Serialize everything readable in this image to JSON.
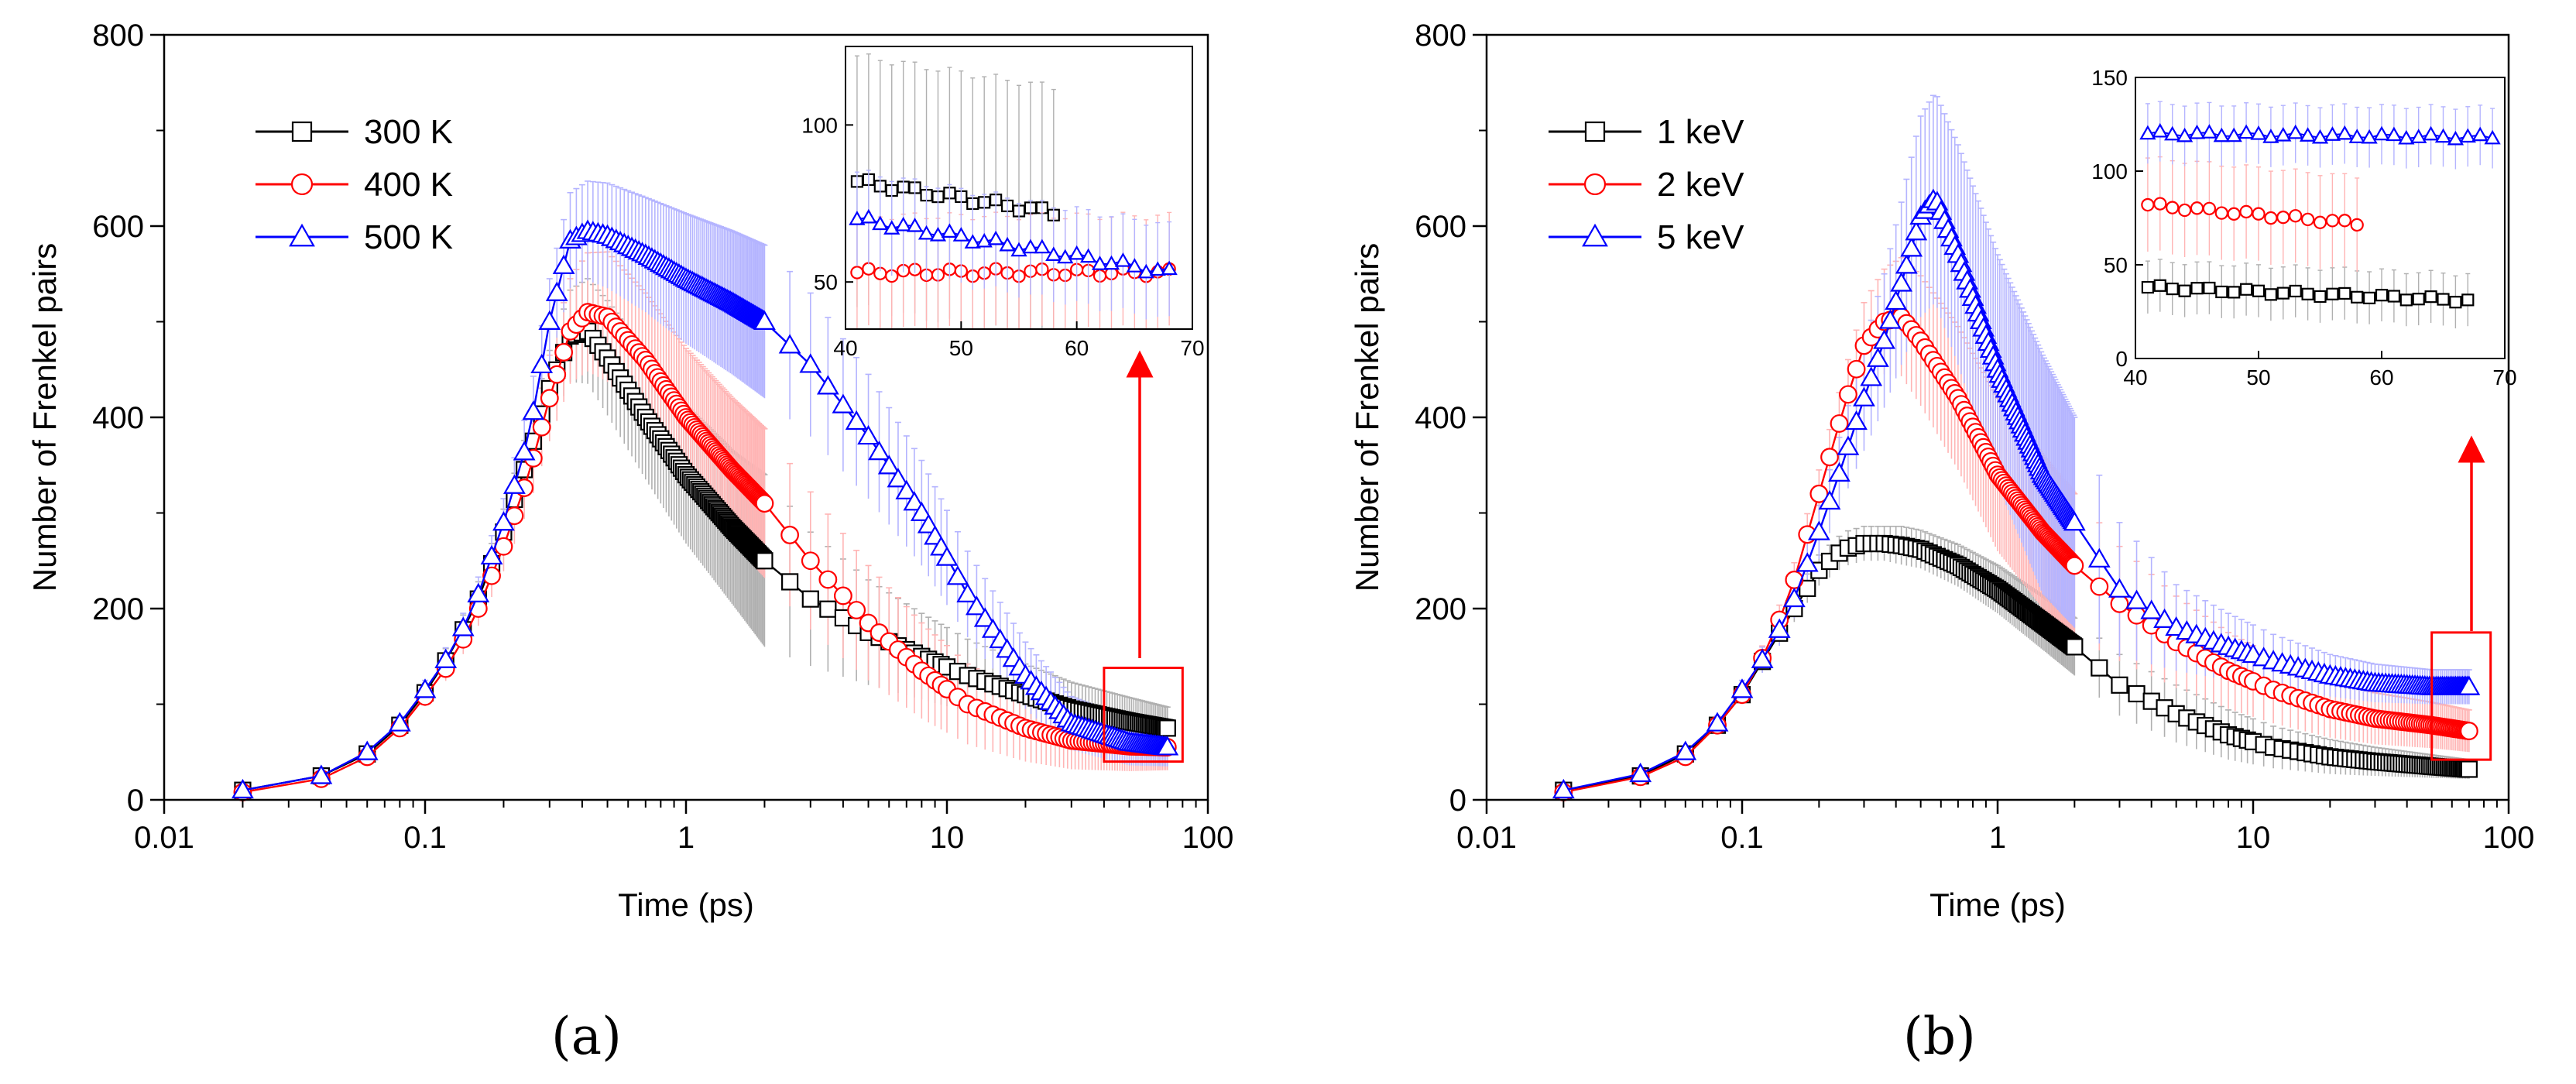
{
  "figure": {
    "panels": [
      "(a)",
      "(b)"
    ]
  },
  "chart_data": [
    {
      "type": "line",
      "id": "a",
      "title": "",
      "xlabel": "Time (ps)",
      "ylabel": "Number of Frenkel pairs",
      "xscale": "log",
      "xlim": [
        0.01,
        100
      ],
      "ylim": [
        0,
        800
      ],
      "xticks": [
        0.01,
        0.1,
        1,
        10,
        100
      ],
      "xtick_labels": [
        "0.01",
        "0.1",
        "1",
        "10",
        "100"
      ],
      "yticks": [
        0,
        200,
        400,
        600,
        800
      ],
      "ytick_labels": [
        "0",
        "200",
        "400",
        "600",
        "800"
      ],
      "legend_position": "top-left",
      "series": [
        {
          "name": "300 K",
          "color": "#000000",
          "marker": "square",
          "anchors_t": [
            0.02,
            0.04,
            0.06,
            0.08,
            0.1,
            0.13,
            0.16,
            0.2,
            0.25,
            0.3,
            0.36,
            0.42,
            0.5,
            0.7,
            1,
            1.5,
            2,
            3,
            5,
            8,
            12,
            20,
            30,
            50,
            70
          ],
          "anchors_v": [
            10,
            25,
            48,
            78,
            112,
            160,
            210,
            280,
            360,
            430,
            485,
            490,
            462,
            400,
            340,
            285,
            250,
            210,
            175,
            150,
            130,
            110,
            95,
            82,
            75
          ],
          "err": [
            2,
            4,
            6,
            8,
            10,
            14,
            18,
            24,
            32,
            40,
            48,
            55,
            60,
            65,
            72,
            80,
            90,
            70,
            55,
            45,
            38,
            32,
            28,
            25,
            22
          ]
        },
        {
          "name": "400 K",
          "color": "#ff0000",
          "marker": "circle",
          "anchors_t": [
            0.02,
            0.04,
            0.06,
            0.08,
            0.1,
            0.13,
            0.16,
            0.2,
            0.25,
            0.3,
            0.36,
            0.42,
            0.5,
            0.7,
            1,
            1.5,
            2,
            3,
            5,
            8,
            12,
            20,
            30,
            50,
            70
          ],
          "anchors_v": [
            8,
            22,
            45,
            75,
            108,
            150,
            200,
            265,
            340,
            420,
            490,
            510,
            505,
            460,
            400,
            345,
            310,
            250,
            185,
            135,
            100,
            75,
            62,
            56,
            55
          ],
          "err": [
            2,
            4,
            6,
            8,
            10,
            14,
            18,
            26,
            34,
            45,
            55,
            62,
            68,
            70,
            72,
            75,
            78,
            72,
            60,
            50,
            42,
            35,
            30,
            26,
            24
          ]
        },
        {
          "name": "500 K",
          "color": "#0000ff",
          "marker": "triangle",
          "anchors_t": [
            0.02,
            0.04,
            0.06,
            0.08,
            0.1,
            0.13,
            0.16,
            0.2,
            0.25,
            0.3,
            0.36,
            0.42,
            0.5,
            0.7,
            1,
            1.5,
            2,
            3,
            5,
            8,
            12,
            20,
            30,
            50,
            70
          ],
          "anchors_v": [
            10,
            25,
            50,
            80,
            115,
            160,
            215,
            290,
            380,
            500,
            585,
            595,
            590,
            570,
            545,
            520,
            500,
            455,
            380,
            300,
            215,
            130,
            80,
            60,
            55
          ],
          "err": [
            2,
            4,
            6,
            8,
            10,
            14,
            18,
            25,
            35,
            45,
            50,
            52,
            55,
            60,
            68,
            75,
            80,
            75,
            65,
            55,
            45,
            35,
            28,
            24,
            20
          ]
        }
      ],
      "inset": {
        "xlim": [
          40,
          70
        ],
        "ylim": [
          35,
          125
        ],
        "xticks": [
          40,
          50,
          60,
          70
        ],
        "xtick_labels": [
          "40",
          "50",
          "60",
          "70"
        ],
        "yticks": [
          50,
          100
        ],
        "ytick_labels": [
          "50",
          "100"
        ],
        "series": [
          {
            "name": "300 K",
            "color": "#000000",
            "marker": "square",
            "x_start": 41,
            "x_end": 58,
            "v_start": 82,
            "v_end": 72,
            "err": 40
          },
          {
            "name": "400 K",
            "color": "#ff0000",
            "marker": "circle",
            "x_start": 41,
            "x_end": 68,
            "v_start": 53,
            "v_end": 53,
            "err": 18
          },
          {
            "name": "500 K",
            "color": "#0000ff",
            "marker": "triangle",
            "x_start": 41,
            "x_end": 68,
            "v_start": 70,
            "v_end": 53,
            "err": 15
          }
        ]
      },
      "zoom_box": {
        "x_range": [
          40,
          80
        ],
        "y_range": [
          40,
          138
        ]
      }
    },
    {
      "type": "line",
      "id": "b",
      "title": "",
      "xlabel": "Time (ps)",
      "ylabel": "Number of Frenkel pairs",
      "xscale": "log",
      "xlim": [
        0.01,
        100
      ],
      "ylim": [
        0,
        800
      ],
      "xticks": [
        0.01,
        0.1,
        1,
        10,
        100
      ],
      "xtick_labels": [
        "0.01",
        "0.1",
        "1",
        "10",
        "100"
      ],
      "yticks": [
        0,
        200,
        400,
        600,
        800
      ],
      "ytick_labels": [
        "0",
        "200",
        "400",
        "600",
        "800"
      ],
      "legend_position": "top-left",
      "series": [
        {
          "name": "1 keV",
          "color": "#000000",
          "marker": "square",
          "anchors_t": [
            0.02,
            0.04,
            0.06,
            0.08,
            0.1,
            0.13,
            0.16,
            0.2,
            0.25,
            0.3,
            0.36,
            0.42,
            0.5,
            0.7,
            1,
            1.5,
            2,
            3,
            5,
            8,
            12,
            20,
            30,
            50,
            70
          ],
          "anchors_v": [
            10,
            25,
            48,
            78,
            110,
            160,
            200,
            240,
            262,
            268,
            268,
            266,
            262,
            245,
            220,
            185,
            160,
            120,
            90,
            68,
            55,
            45,
            40,
            35,
            32
          ],
          "err": [
            2,
            4,
            6,
            8,
            10,
            12,
            14,
            16,
            18,
            18,
            18,
            20,
            20,
            22,
            25,
            28,
            30,
            32,
            30,
            26,
            22,
            18,
            15,
            12,
            10
          ]
        },
        {
          "name": "2 keV",
          "color": "#ff0000",
          "marker": "circle",
          "anchors_t": [
            0.02,
            0.04,
            0.06,
            0.08,
            0.1,
            0.13,
            0.16,
            0.2,
            0.25,
            0.3,
            0.36,
            0.42,
            0.5,
            0.7,
            1,
            1.5,
            2,
            3,
            5,
            8,
            12,
            20,
            30,
            50,
            70
          ],
          "anchors_v": [
            8,
            24,
            45,
            78,
            110,
            165,
            230,
            320,
            410,
            475,
            500,
            505,
            480,
            420,
            340,
            280,
            245,
            205,
            165,
            135,
            115,
            95,
            85,
            78,
            72
          ],
          "err": [
            2,
            4,
            6,
            8,
            10,
            14,
            18,
            25,
            34,
            45,
            55,
            62,
            68,
            75,
            80,
            80,
            75,
            60,
            48,
            40,
            35,
            30,
            27,
            24,
            22
          ]
        },
        {
          "name": "5 keV",
          "color": "#0000ff",
          "marker": "triangle",
          "anchors_t": [
            0.02,
            0.04,
            0.06,
            0.08,
            0.1,
            0.13,
            0.16,
            0.2,
            0.25,
            0.3,
            0.36,
            0.42,
            0.5,
            0.57,
            0.7,
            1,
            1.5,
            2,
            3,
            5,
            8,
            12,
            20,
            30,
            50,
            70
          ],
          "anchors_v": [
            10,
            27,
            50,
            80,
            115,
            160,
            210,
            280,
            355,
            420,
            480,
            540,
            610,
            630,
            570,
            450,
            340,
            290,
            220,
            180,
            160,
            145,
            130,
            122,
            118,
            118
          ],
          "err": [
            2,
            4,
            6,
            8,
            10,
            15,
            20,
            28,
            40,
            55,
            70,
            85,
            105,
            110,
            115,
            120,
            125,
            110,
            70,
            45,
            35,
            28,
            22,
            20,
            18,
            18
          ]
        }
      ],
      "inset": {
        "xlim": [
          40,
          70
        ],
        "ylim": [
          0,
          150
        ],
        "xticks": [
          40,
          50,
          60,
          70
        ],
        "xtick_labels": [
          "40",
          "50",
          "60",
          "70"
        ],
        "yticks": [
          0,
          50,
          100,
          150
        ],
        "ytick_labels": [
          "0",
          "50",
          "100",
          "150"
        ],
        "series": [
          {
            "name": "1 keV",
            "color": "#000000",
            "marker": "square",
            "x_start": 41,
            "x_end": 67,
            "v_start": 38,
            "v_end": 31,
            "err": 14
          },
          {
            "name": "2 keV",
            "color": "#ff0000",
            "marker": "circle",
            "x_start": 41,
            "x_end": 58,
            "v_start": 82,
            "v_end": 72,
            "err": 25
          },
          {
            "name": "5 keV",
            "color": "#0000ff",
            "marker": "triangle",
            "x_start": 41,
            "x_end": 69,
            "v_start": 120,
            "v_end": 118,
            "err": 16
          }
        ]
      },
      "zoom_box": {
        "x_range": [
          50,
          85
        ],
        "y_range": [
          42,
          175
        ]
      }
    }
  ]
}
